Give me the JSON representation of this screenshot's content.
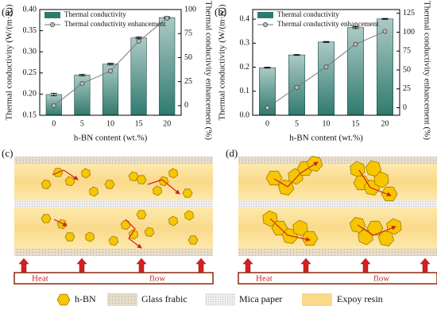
{
  "chart_data": [
    {
      "type": "bar",
      "panel": "(a)",
      "xlabel": "h-BN content (wt.%)",
      "ylabel": "Thermal conductivity (W/(m·K))",
      "y2label": "Thermal conductivity enhancement (%)",
      "categories": [
        "0",
        "5",
        "10",
        "15",
        "20"
      ],
      "series": [
        {
          "name": "Thermal conductivity",
          "type": "bar",
          "color": "#2f7a6e",
          "values": [
            0.199,
            0.245,
            0.271,
            0.333,
            0.381
          ],
          "errors": [
            0.003,
            0.002,
            0.002,
            0.002,
            0.002
          ]
        },
        {
          "name": "Thermal conductivity enhancement",
          "type": "line",
          "axis": "y2",
          "color": "#7a7a7a",
          "values": [
            0,
            23,
            36,
            67,
            91
          ]
        }
      ],
      "ylim": [
        0.15,
        0.4
      ],
      "yticks": [
        0.15,
        {
          "value": 0.2,
          "label": "0.20"
        },
        0.25,
        {
          "value": 0.3,
          "label": "0.30"
        },
        0.35,
        {
          "value": 0.4,
          "label": "0.40"
        }
      ],
      "y2lim": [
        -10,
        100
      ],
      "y2ticks": [
        0,
        25,
        50,
        75,
        100
      ]
    },
    {
      "type": "bar",
      "panel": "(b)",
      "xlabel": "h-BN content (wt.%)",
      "ylabel": "Thermal conductivity (W/(m·K))",
      "y2label": "Thermal conductivity enhancement (%)",
      "categories": [
        "0",
        "5",
        "10",
        "15",
        "20"
      ],
      "series": [
        {
          "name": "Thermal conductivity",
          "type": "bar",
          "color": "#2f7a6e",
          "values": [
            0.198,
            0.251,
            0.305,
            0.365,
            0.401
          ],
          "errors": [
            0.002,
            0.002,
            0.002,
            0.004,
            0.002
          ]
        },
        {
          "name": "Thermal conductivity enhancement",
          "type": "line",
          "axis": "y2",
          "color": "#7a7a7a",
          "values": [
            0,
            27,
            54,
            84,
            101
          ]
        }
      ],
      "ylim": [
        0,
        0.44
      ],
      "yticks": [
        {
          "value": 0,
          "label": "0.0"
        },
        0.1,
        0.2,
        0.3,
        0.4
      ],
      "y2lim": [
        -10,
        130
      ],
      "y2ticks": [
        0,
        25,
        50,
        75,
        100,
        125
      ]
    }
  ],
  "diagrams": [
    {
      "panel": "(c)",
      "heat": "Heat",
      "flow": "flow"
    },
    {
      "panel": "(d)",
      "heat": "Heat",
      "flow": "flow"
    }
  ],
  "legend": [
    "h-BN",
    "Glass frabic",
    "Mica paper",
    "Expoy resin"
  ]
}
